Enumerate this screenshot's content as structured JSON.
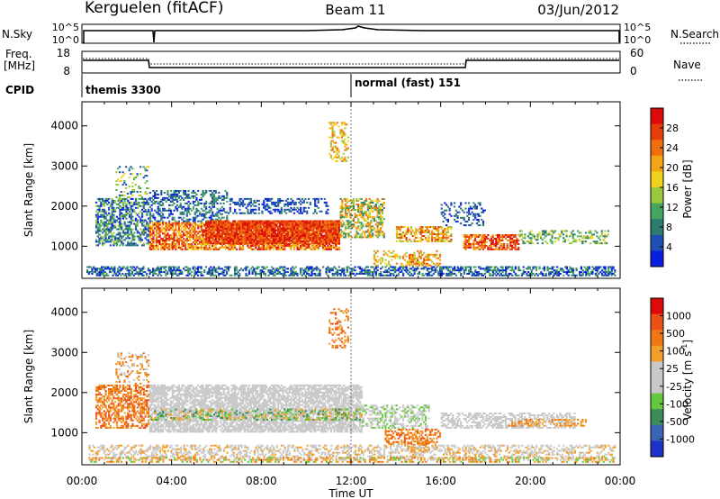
{
  "header": {
    "station": "Kerguelen (fitACF)",
    "beam": "Beam 11",
    "date": "03/Jun/2012"
  },
  "chart_data": [
    {
      "type": "line",
      "panel": "sky-search",
      "left_label": "N.Sky",
      "right_label": "N.Search",
      "left_ticks": [
        "10^5",
        "10^0"
      ],
      "right_ticks": [
        "10^5",
        "10^0"
      ],
      "legend_style": "dotted"
    },
    {
      "type": "line",
      "panel": "freq-nave",
      "left_label_line1": "Freq.",
      "left_label_line2": "[MHz]",
      "right_label": "Nave",
      "left_ticks": [
        "18",
        "8"
      ],
      "right_ticks": [
        "60",
        "0"
      ],
      "legend_style": "dotted",
      "freq_steps": [
        {
          "from": "00:00",
          "to": "02:55",
          "level": "high"
        },
        {
          "from": "02:55",
          "to": "17:00",
          "level": "low"
        },
        {
          "from": "17:00",
          "to": "24:00",
          "level": "high"
        }
      ]
    },
    {
      "type": "table",
      "panel": "cpid",
      "label": "CPID",
      "programs": [
        {
          "name": "themis 3300",
          "start": "00:00"
        },
        {
          "name": "normal (fast) 151",
          "start": "12:00"
        }
      ]
    },
    {
      "type": "heatmap",
      "panel": "power",
      "ylabel": "Slant Range [km]",
      "yticks": [
        "4000",
        "3000",
        "2000",
        "1000"
      ],
      "ylim": [
        200,
        4600
      ],
      "colorbar_label": "Power [dB]",
      "colorbar_ticks": [
        "28",
        "24",
        "20",
        "16",
        "12",
        "8",
        "4"
      ],
      "colors": [
        "#0a1ee0",
        "#1e50b4",
        "#2d7d6e",
        "#46a55f",
        "#9bc83c",
        "#f0d21e",
        "#f5a514",
        "#f06e0f",
        "#e63c0a",
        "#dc0a0a"
      ]
    },
    {
      "type": "heatmap",
      "panel": "velocity",
      "ylabel": "Slant Range [km]",
      "yticks": [
        "4000",
        "3000",
        "2000",
        "1000"
      ],
      "ylim": [
        200,
        4600
      ],
      "colorbar_label": "Velocity [m s",
      "colorbar_label_sup": "-1",
      "colorbar_label_end": "]",
      "colorbar_ticks": [
        "1000",
        "500",
        "100",
        "25",
        "-25",
        "-100",
        "-500",
        "-1000"
      ],
      "colors": [
        "#1e32c8",
        "#3c64b4",
        "#3c8c5a",
        "#64c83c",
        "#c8c8c8",
        "#c8c8c8",
        "#f0a028",
        "#f07814",
        "#eb5014",
        "#dc0a0a"
      ]
    }
  ],
  "xaxis": {
    "label": "Time UT",
    "ticks": [
      "00:00",
      "04:00",
      "08:00",
      "12:00",
      "16:00",
      "20:00",
      "00:00"
    ]
  }
}
